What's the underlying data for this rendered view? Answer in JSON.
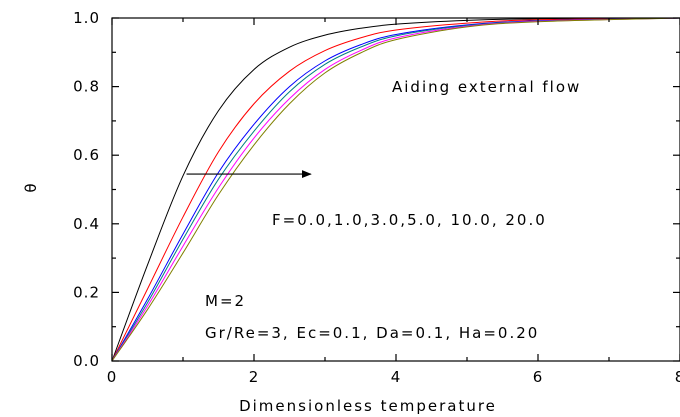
{
  "chart_data": {
    "type": "line",
    "xlabel": "Dimensionless temperature",
    "ylabel": "θ",
    "xlim": [
      0,
      8
    ],
    "ylim": [
      0,
      1.0
    ],
    "xticks": [
      0,
      2,
      4,
      6,
      8
    ],
    "yticks": [
      "0.0",
      "0.2",
      "0.4",
      "0.6",
      "0.8",
      "1.0"
    ],
    "xtick_labels": [
      "0",
      "2",
      "4",
      "6",
      "8"
    ],
    "grid": false,
    "series": [
      {
        "color": "#000000",
        "x": [
          0,
          0.5,
          1.0,
          1.5,
          2.0,
          2.5,
          3.0,
          3.5,
          4.0,
          5.0,
          6.0,
          8.0
        ],
        "y": [
          0,
          0.28,
          0.54,
          0.73,
          0.85,
          0.915,
          0.95,
          0.97,
          0.982,
          0.993,
          0.998,
          1.0
        ]
      },
      {
        "color": "#ff0000",
        "x": [
          0,
          0.5,
          1.0,
          1.5,
          2.0,
          2.5,
          3.0,
          3.5,
          4.0,
          5.0,
          6.0,
          8.0
        ],
        "y": [
          0,
          0.21,
          0.42,
          0.61,
          0.75,
          0.845,
          0.905,
          0.942,
          0.965,
          0.985,
          0.995,
          1.0
        ]
      },
      {
        "color": "#0000ff",
        "x": [
          0,
          0.5,
          1.0,
          1.5,
          2.0,
          2.5,
          3.0,
          3.5,
          4.0,
          5.0,
          6.0,
          8.0
        ],
        "y": [
          0,
          0.18,
          0.37,
          0.55,
          0.69,
          0.8,
          0.875,
          0.922,
          0.952,
          0.98,
          0.992,
          1.0
        ]
      },
      {
        "color": "#008080",
        "x": [
          0,
          0.5,
          1.0,
          1.5,
          2.0,
          2.5,
          3.0,
          3.5,
          4.0,
          5.0,
          6.0,
          8.0
        ],
        "y": [
          0,
          0.17,
          0.355,
          0.53,
          0.67,
          0.785,
          0.865,
          0.915,
          0.948,
          0.978,
          0.991,
          1.0
        ]
      },
      {
        "color": "#ff00ff",
        "x": [
          0,
          0.5,
          1.0,
          1.5,
          2.0,
          2.5,
          3.0,
          3.5,
          4.0,
          5.0,
          6.0,
          8.0
        ],
        "y": [
          0,
          0.16,
          0.335,
          0.505,
          0.65,
          0.765,
          0.85,
          0.905,
          0.942,
          0.976,
          0.99,
          1.0
        ]
      },
      {
        "color": "#808000",
        "x": [
          0,
          0.5,
          1.0,
          1.5,
          2.0,
          2.5,
          3.0,
          3.5,
          4.0,
          5.0,
          6.0,
          8.0
        ],
        "y": [
          0,
          0.15,
          0.315,
          0.485,
          0.63,
          0.75,
          0.84,
          0.898,
          0.937,
          0.974,
          0.989,
          1.0
        ]
      }
    ],
    "annotations": [
      {
        "text": "Aiding external flow"
      },
      {
        "text": "F=0.0,1.0,3.0,5.0, 10.0, 20.0"
      },
      {
        "text": "M=2"
      },
      {
        "text": "Gr/Re=3, Ec=0.1, Da=0.1, Ha=0.20"
      }
    ],
    "arrow": {
      "x_from": 1.05,
      "y_from": 0.545,
      "x_to": 2.8,
      "y_to": 0.545
    }
  }
}
